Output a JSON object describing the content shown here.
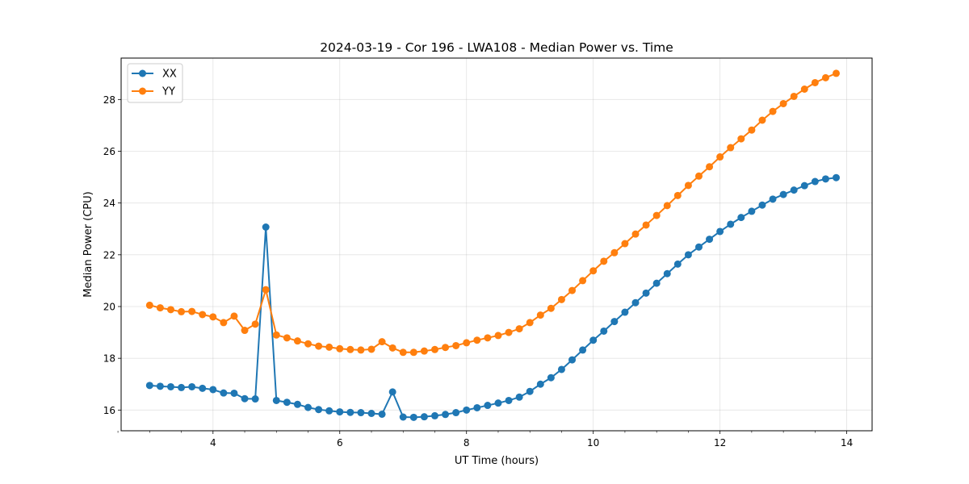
{
  "chart_data": {
    "type": "line",
    "title": "2024-03-19 - Cor 196 - LWA108 - Median Power vs. Time",
    "xlabel": "UT Time (hours)",
    "ylabel": "Median Power (CPU)",
    "xlim": [
      2.55,
      14.4
    ],
    "ylim": [
      15.2,
      29.6
    ],
    "xticks": [
      4,
      6,
      8,
      10,
      12,
      14
    ],
    "xtick_labels": [
      "4",
      "6",
      "8",
      "10",
      "12",
      "14"
    ],
    "xminor": [
      2.5,
      3.0,
      3.5,
      4.5,
      5.0,
      5.5,
      6.5,
      7.0,
      7.5,
      8.5,
      9.0,
      9.5,
      10.5,
      11.0,
      11.5,
      12.5,
      13.0,
      13.5
    ],
    "yticks": [
      16,
      18,
      20,
      22,
      24,
      26,
      28
    ],
    "ytick_labels": [
      "16",
      "18",
      "20",
      "22",
      "24",
      "26",
      "28"
    ],
    "grid": true,
    "legend_position": "top-left",
    "colors": {
      "XX": "#1f77b4",
      "YY": "#ff7f0e"
    },
    "x": [
      3.0,
      3.1667,
      3.3333,
      3.5,
      3.6667,
      3.8333,
      4.0,
      4.1667,
      4.3333,
      4.5,
      4.6667,
      4.8333,
      5.0,
      5.1667,
      5.3333,
      5.5,
      5.6667,
      5.8333,
      6.0,
      6.1667,
      6.3333,
      6.5,
      6.6667,
      6.8333,
      7.0,
      7.1667,
      7.3333,
      7.5,
      7.6667,
      7.8333,
      8.0,
      8.1667,
      8.3333,
      8.5,
      8.6667,
      8.8333,
      9.0,
      9.1667,
      9.3333,
      9.5,
      9.6667,
      9.8333,
      10.0,
      10.1667,
      10.3333,
      10.5,
      10.6667,
      10.8333,
      11.0,
      11.1667,
      11.3333,
      11.5,
      11.6667,
      11.8333,
      12.0,
      12.1667,
      12.3333,
      12.5,
      12.6667,
      12.8333,
      13.0,
      13.1667,
      13.3333,
      13.5,
      13.6667,
      13.8333
    ],
    "series": [
      {
        "name": "XX",
        "values": [
          16.95,
          16.92,
          16.9,
          16.87,
          16.9,
          16.84,
          16.79,
          16.66,
          16.65,
          16.44,
          16.43,
          23.07,
          16.37,
          16.3,
          16.22,
          16.1,
          16.02,
          15.97,
          15.93,
          15.91,
          15.9,
          15.87,
          15.84,
          16.7,
          15.73,
          15.72,
          15.74,
          15.78,
          15.83,
          15.9,
          16.0,
          16.09,
          16.18,
          16.27,
          16.37,
          16.5,
          16.72,
          17.0,
          17.25,
          17.57,
          17.94,
          18.32,
          18.7,
          19.05,
          19.42,
          19.78,
          20.15,
          20.52,
          20.9,
          21.27,
          21.64,
          22.0,
          22.3,
          22.6,
          22.9,
          23.18,
          23.44,
          23.68,
          23.92,
          24.15,
          24.33,
          24.5,
          24.67,
          24.83,
          24.93,
          24.98
        ]
      },
      {
        "name": "YY",
        "values": [
          20.05,
          19.95,
          19.88,
          19.8,
          19.81,
          19.69,
          19.6,
          19.38,
          19.63,
          19.08,
          19.32,
          20.65,
          18.9,
          18.79,
          18.67,
          18.56,
          18.47,
          18.43,
          18.37,
          18.34,
          18.32,
          18.35,
          18.64,
          18.4,
          18.23,
          18.23,
          18.28,
          18.34,
          18.42,
          18.49,
          18.6,
          18.7,
          18.79,
          18.88,
          19.0,
          19.14,
          19.38,
          19.67,
          19.93,
          20.27,
          20.62,
          21.0,
          21.38,
          21.75,
          22.08,
          22.43,
          22.8,
          23.15,
          23.52,
          23.9,
          24.29,
          24.68,
          25.04,
          25.4,
          25.78,
          26.14,
          26.48,
          26.82,
          27.2,
          27.54,
          27.84,
          28.12,
          28.4,
          28.65,
          28.84,
          29.01
        ]
      }
    ]
  }
}
